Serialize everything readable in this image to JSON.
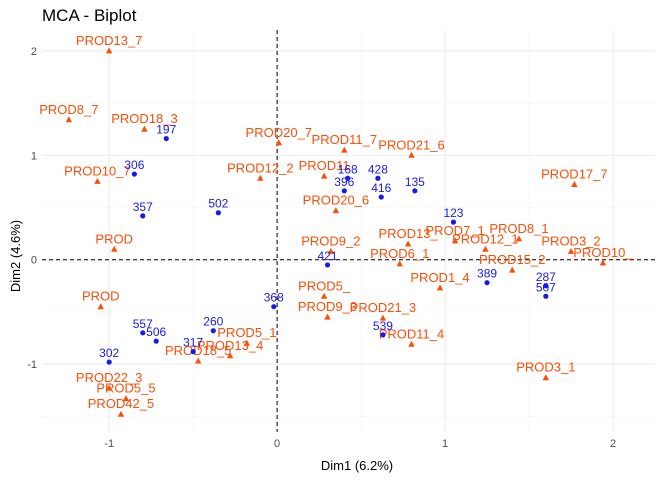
{
  "chart_data": {
    "type": "scatter",
    "title": "MCA - Biplot",
    "xlabel": "Dim1 (6.2%)",
    "ylabel": "Dim2 (4.6%)",
    "xlim": [
      -1.4,
      2.25
    ],
    "ylim": [
      -1.65,
      2.2
    ],
    "xticks": [
      -1,
      0,
      1,
      2
    ],
    "yticks": [
      -1,
      0,
      1,
      2
    ],
    "grid": true,
    "ref_lines": {
      "x": 0,
      "y": 0
    },
    "colors": {
      "categories": "#FC4E07",
      "individuals": "#1A1AE6",
      "grid": "#ebebeb"
    },
    "categories": [
      {
        "label": "PROD13_7",
        "x": -1.0,
        "y": 2.0
      },
      {
        "label": "PROD8_7",
        "x": -1.24,
        "y": 1.34
      },
      {
        "label": "PROD18_3",
        "x": -0.79,
        "y": 1.25
      },
      {
        "label": "PROD10_7",
        "x": -1.07,
        "y": 0.75
      },
      {
        "label": "PROD17_7",
        "x": 1.77,
        "y": 0.72
      },
      {
        "label": "PROD20_7",
        "x": 0.01,
        "y": 1.12
      },
      {
        "label": "PROD11_7",
        "x": 0.4,
        "y": 1.05
      },
      {
        "label": "PROD21_6",
        "x": 0.8,
        "y": 1.0
      },
      {
        "label": "PROD11",
        "x": 0.28,
        "y": 0.8
      },
      {
        "label": "PROD20_6",
        "x": 0.35,
        "y": 0.47
      },
      {
        "label": "PROD12_2",
        "x": -0.1,
        "y": 0.78
      },
      {
        "label": "PROD7_1",
        "x": 1.06,
        "y": 0.18
      },
      {
        "label": "PROD8_1",
        "x": 1.44,
        "y": 0.2
      },
      {
        "label": "PROD12_1",
        "x": 1.24,
        "y": 0.1
      },
      {
        "label": "PROD3_2",
        "x": 1.75,
        "y": 0.08
      },
      {
        "label": "PROD10_",
        "x": 1.94,
        "y": -0.03
      },
      {
        "label": "PROD13_",
        "x": 0.78,
        "y": 0.15
      },
      {
        "label": "PROD15_2",
        "x": 1.4,
        "y": -0.1
      },
      {
        "label": "PROD9_2",
        "x": 0.32,
        "y": 0.08
      },
      {
        "label": "PROD6_1",
        "x": 0.73,
        "y": -0.04
      },
      {
        "label": "PROD1_4",
        "x": 0.97,
        "y": -0.27
      },
      {
        "label": "PROD5_",
        "x": 0.28,
        "y": -0.35
      },
      {
        "label": "PROD9_3",
        "x": 0.3,
        "y": -0.55
      },
      {
        "label": "PROD21_3",
        "x": 0.63,
        "y": -0.56
      },
      {
        "label": "PROD11_4",
        "x": 0.8,
        "y": -0.81
      },
      {
        "label": "PROD3_1",
        "x": 1.6,
        "y": -1.13
      },
      {
        "label": "PROD13_4",
        "x": -0.28,
        "y": -0.92
      },
      {
        "label": "PROD18_5",
        "x": -0.47,
        "y": -0.97
      },
      {
        "label": "PROD5_1",
        "x": -0.18,
        "y": -0.8
      },
      {
        "label": "PROD22_3",
        "x": -1.0,
        "y": -1.23
      },
      {
        "label": "PROD5_5",
        "x": -0.9,
        "y": -1.33
      },
      {
        "label": "PROD42_5",
        "x": -0.93,
        "y": -1.48
      },
      {
        "label": "PROD",
        "x": -1.05,
        "y": -0.45
      },
      {
        "label": "PROD",
        "x": -0.97,
        "y": 0.1
      }
    ],
    "individuals": [
      {
        "label": "197",
        "x": -0.66,
        "y": 1.16
      },
      {
        "label": "306",
        "x": -0.85,
        "y": 0.82
      },
      {
        "label": "168",
        "x": 0.42,
        "y": 0.78
      },
      {
        "label": "428",
        "x": 0.6,
        "y": 0.78
      },
      {
        "label": "396",
        "x": 0.4,
        "y": 0.66
      },
      {
        "label": "135",
        "x": 0.82,
        "y": 0.66
      },
      {
        "label": "416",
        "x": 0.62,
        "y": 0.6
      },
      {
        "label": "123",
        "x": 1.05,
        "y": 0.36
      },
      {
        "label": "502",
        "x": -0.35,
        "y": 0.45
      },
      {
        "label": "357",
        "x": -0.8,
        "y": 0.42
      },
      {
        "label": "421",
        "x": 0.3,
        "y": -0.05
      },
      {
        "label": "389",
        "x": 1.25,
        "y": -0.22
      },
      {
        "label": "287",
        "x": 1.6,
        "y": -0.25
      },
      {
        "label": "507",
        "x": 1.6,
        "y": -0.35
      },
      {
        "label": "539",
        "x": 0.63,
        "y": -0.72
      },
      {
        "label": "368",
        "x": -0.02,
        "y": -0.45
      },
      {
        "label": "260",
        "x": -0.38,
        "y": -0.68
      },
      {
        "label": "557",
        "x": -0.8,
        "y": -0.7
      },
      {
        "label": "506",
        "x": -0.72,
        "y": -0.78
      },
      {
        "label": "302",
        "x": -1.0,
        "y": -0.98
      },
      {
        "label": "317",
        "x": -0.5,
        "y": -0.88
      }
    ]
  }
}
